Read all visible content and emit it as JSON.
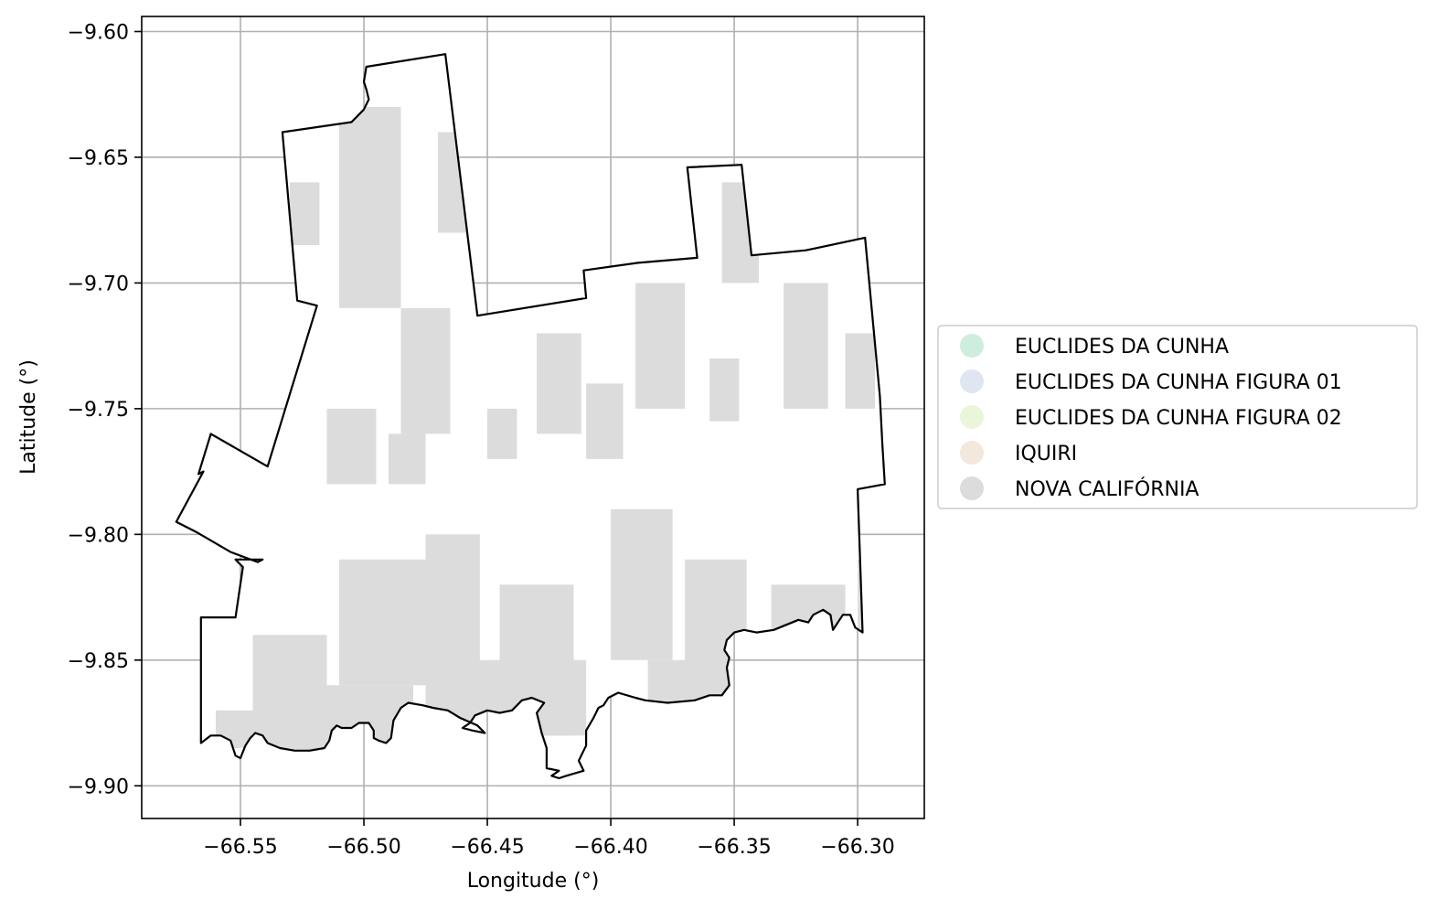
{
  "chart_data": {
    "type": "map",
    "xlabel": "Longitude (°)",
    "ylabel": "Latitude (°)",
    "xlim": [
      -66.59,
      -66.273
    ],
    "ylim": [
      -9.913,
      -9.594
    ],
    "xticks": [
      {
        "value": -66.55,
        "label": "−66.55"
      },
      {
        "value": -66.5,
        "label": "−66.50"
      },
      {
        "value": -66.45,
        "label": "−66.45"
      },
      {
        "value": -66.4,
        "label": "−66.40"
      },
      {
        "value": -66.35,
        "label": "−66.35"
      },
      {
        "value": -66.3,
        "label": "−66.30"
      }
    ],
    "yticks": [
      {
        "value": -9.6,
        "label": "−9.60"
      },
      {
        "value": -9.65,
        "label": "−9.65"
      },
      {
        "value": -9.7,
        "label": "−9.70"
      },
      {
        "value": -9.75,
        "label": "−9.75"
      },
      {
        "value": -9.8,
        "label": "−9.80"
      },
      {
        "value": -9.85,
        "label": "−9.85"
      },
      {
        "value": -9.9,
        "label": "−9.90"
      }
    ],
    "grid": true,
    "legend_position": "center-right-outside",
    "legend": [
      {
        "name": "EUCLIDES DA CUNHA",
        "color": "#cdeedd"
      },
      {
        "name": "EUCLIDES DA CUNHA FIGURA 01",
        "color": "#dfe6f2"
      },
      {
        "name": "EUCLIDES DA CUNHA FIGURA 02",
        "color": "#e9f6d9"
      },
      {
        "name": "IQUIRI",
        "color": "#f3e8dc"
      },
      {
        "name": "NOVA CALIFÓRNIA",
        "color": "#dcdcdc"
      }
    ],
    "boundary": [
      [
        -66.533,
        -9.64
      ],
      [
        -66.505,
        -9.636
      ],
      [
        -66.5,
        -9.631
      ],
      [
        -66.498,
        -9.627
      ],
      [
        -66.499,
        -9.623
      ],
      [
        -66.5,
        -9.62
      ],
      [
        -66.499,
        -9.614
      ],
      [
        -66.467,
        -9.609
      ],
      [
        -66.454,
        -9.713
      ],
      [
        -66.41,
        -9.706
      ],
      [
        -66.411,
        -9.695
      ],
      [
        -66.389,
        -9.692
      ],
      [
        -66.365,
        -9.69
      ],
      [
        -66.369,
        -9.654
      ],
      [
        -66.347,
        -9.653
      ],
      [
        -66.343,
        -9.689
      ],
      [
        -66.321,
        -9.687
      ],
      [
        -66.297,
        -9.682
      ],
      [
        -66.291,
        -9.745
      ],
      [
        -66.29,
        -9.764
      ],
      [
        -66.289,
        -9.78
      ],
      [
        -66.3,
        -9.782
      ],
      [
        -66.298,
        -9.839
      ],
      [
        -66.301,
        -9.837
      ],
      [
        -66.303,
        -9.832
      ],
      [
        -66.306,
        -9.832
      ],
      [
        -66.31,
        -9.838
      ],
      [
        -66.311,
        -9.832
      ],
      [
        -66.314,
        -9.83
      ],
      [
        -66.318,
        -9.832
      ],
      [
        -66.32,
        -9.835
      ],
      [
        -66.324,
        -9.834
      ],
      [
        -66.329,
        -9.836
      ],
      [
        -66.334,
        -9.838
      ],
      [
        -66.341,
        -9.839
      ],
      [
        -66.346,
        -9.838
      ],
      [
        -66.35,
        -9.839
      ],
      [
        -66.353,
        -9.842
      ],
      [
        -66.354,
        -9.846
      ],
      [
        -66.352,
        -9.849
      ],
      [
        -66.353,
        -9.853
      ],
      [
        -66.352,
        -9.86
      ],
      [
        -66.355,
        -9.864
      ],
      [
        -66.36,
        -9.864
      ],
      [
        -66.366,
        -9.866
      ],
      [
        -66.377,
        -9.867
      ],
      [
        -66.386,
        -9.866
      ],
      [
        -66.39,
        -9.865
      ],
      [
        -66.397,
        -9.863
      ],
      [
        -66.401,
        -9.865
      ],
      [
        -66.403,
        -9.868
      ],
      [
        -66.405,
        -9.869
      ],
      [
        -66.407,
        -9.873
      ],
      [
        -66.41,
        -9.878
      ],
      [
        -66.41,
        -9.884
      ],
      [
        -66.412,
        -9.888
      ],
      [
        -66.413,
        -9.89
      ],
      [
        -66.411,
        -9.894
      ],
      [
        -66.418,
        -9.896
      ],
      [
        -66.421,
        -9.897
      ],
      [
        -66.424,
        -9.896
      ],
      [
        -66.421,
        -9.894
      ],
      [
        -66.426,
        -9.893
      ],
      [
        -66.426,
        -9.885
      ],
      [
        -66.428,
        -9.879
      ],
      [
        -66.43,
        -9.871
      ],
      [
        -66.427,
        -9.867
      ],
      [
        -66.432,
        -9.865
      ],
      [
        -66.436,
        -9.866
      ],
      [
        -66.44,
        -9.87
      ],
      [
        -66.445,
        -9.871
      ],
      [
        -66.45,
        -9.87
      ],
      [
        -66.455,
        -9.872
      ],
      [
        -66.457,
        -9.875
      ],
      [
        -66.46,
        -9.877
      ],
      [
        -66.456,
        -9.878
      ],
      [
        -66.451,
        -9.879
      ],
      [
        -66.454,
        -9.876
      ],
      [
        -66.461,
        -9.873
      ],
      [
        -66.466,
        -9.87
      ],
      [
        -66.472,
        -9.869
      ],
      [
        -66.476,
        -9.868
      ],
      [
        -66.482,
        -9.867
      ],
      [
        -66.485,
        -9.869
      ],
      [
        -66.488,
        -9.874
      ],
      [
        -66.489,
        -9.881
      ],
      [
        -66.491,
        -9.883
      ],
      [
        -66.494,
        -9.882
      ],
      [
        -66.496,
        -9.881
      ],
      [
        -66.496,
        -9.878
      ],
      [
        -66.498,
        -9.875
      ],
      [
        -66.502,
        -9.875
      ],
      [
        -66.505,
        -9.877
      ],
      [
        -66.509,
        -9.877
      ],
      [
        -66.511,
        -9.876
      ],
      [
        -66.513,
        -9.878
      ],
      [
        -66.514,
        -9.882
      ],
      [
        -66.516,
        -9.885
      ],
      [
        -66.522,
        -9.886
      ],
      [
        -66.528,
        -9.886
      ],
      [
        -66.534,
        -9.885
      ],
      [
        -66.539,
        -9.883
      ],
      [
        -66.541,
        -9.88
      ],
      [
        -66.544,
        -9.879
      ],
      [
        -66.546,
        -9.881
      ],
      [
        -66.548,
        -9.884
      ],
      [
        -66.55,
        -9.889
      ],
      [
        -66.552,
        -9.888
      ],
      [
        -66.554,
        -9.882
      ],
      [
        -66.558,
        -9.88
      ],
      [
        -66.562,
        -9.88
      ],
      [
        -66.566,
        -9.883
      ],
      [
        -66.566,
        -9.833
      ],
      [
        -66.559,
        -9.833
      ],
      [
        -66.552,
        -9.833
      ],
      [
        -66.549,
        -9.813
      ],
      [
        -66.552,
        -9.81
      ],
      [
        -66.541,
        -9.81
      ],
      [
        -66.543,
        -9.811
      ],
      [
        -66.554,
        -9.807
      ],
      [
        -66.561,
        -9.803
      ],
      [
        -66.568,
        -9.799
      ],
      [
        -66.576,
        -9.795
      ],
      [
        -66.565,
        -9.775
      ],
      [
        -66.567,
        -9.776
      ],
      [
        -66.562,
        -9.76
      ],
      [
        -66.539,
        -9.773
      ],
      [
        -66.519,
        -9.709
      ],
      [
        -66.527,
        -9.707
      ],
      [
        -66.533,
        -9.64
      ]
    ]
  }
}
